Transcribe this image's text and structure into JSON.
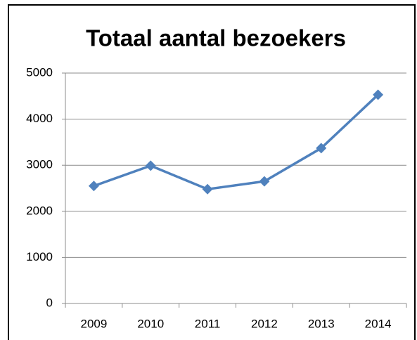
{
  "chart_data": {
    "type": "line",
    "title": "Totaal aantal bezoekers",
    "categories": [
      "2009",
      "2010",
      "2011",
      "2012",
      "2013",
      "2014"
    ],
    "series": [
      {
        "name": "Totaal aantal bezoekers",
        "color": "#4f81bd",
        "values": [
          2550,
          2990,
          2480,
          2650,
          3370,
          4530
        ]
      }
    ],
    "ylim": [
      0,
      5000
    ],
    "yticks": [
      0,
      1000,
      2000,
      3000,
      4000,
      5000
    ],
    "grid": true,
    "legend": false
  }
}
